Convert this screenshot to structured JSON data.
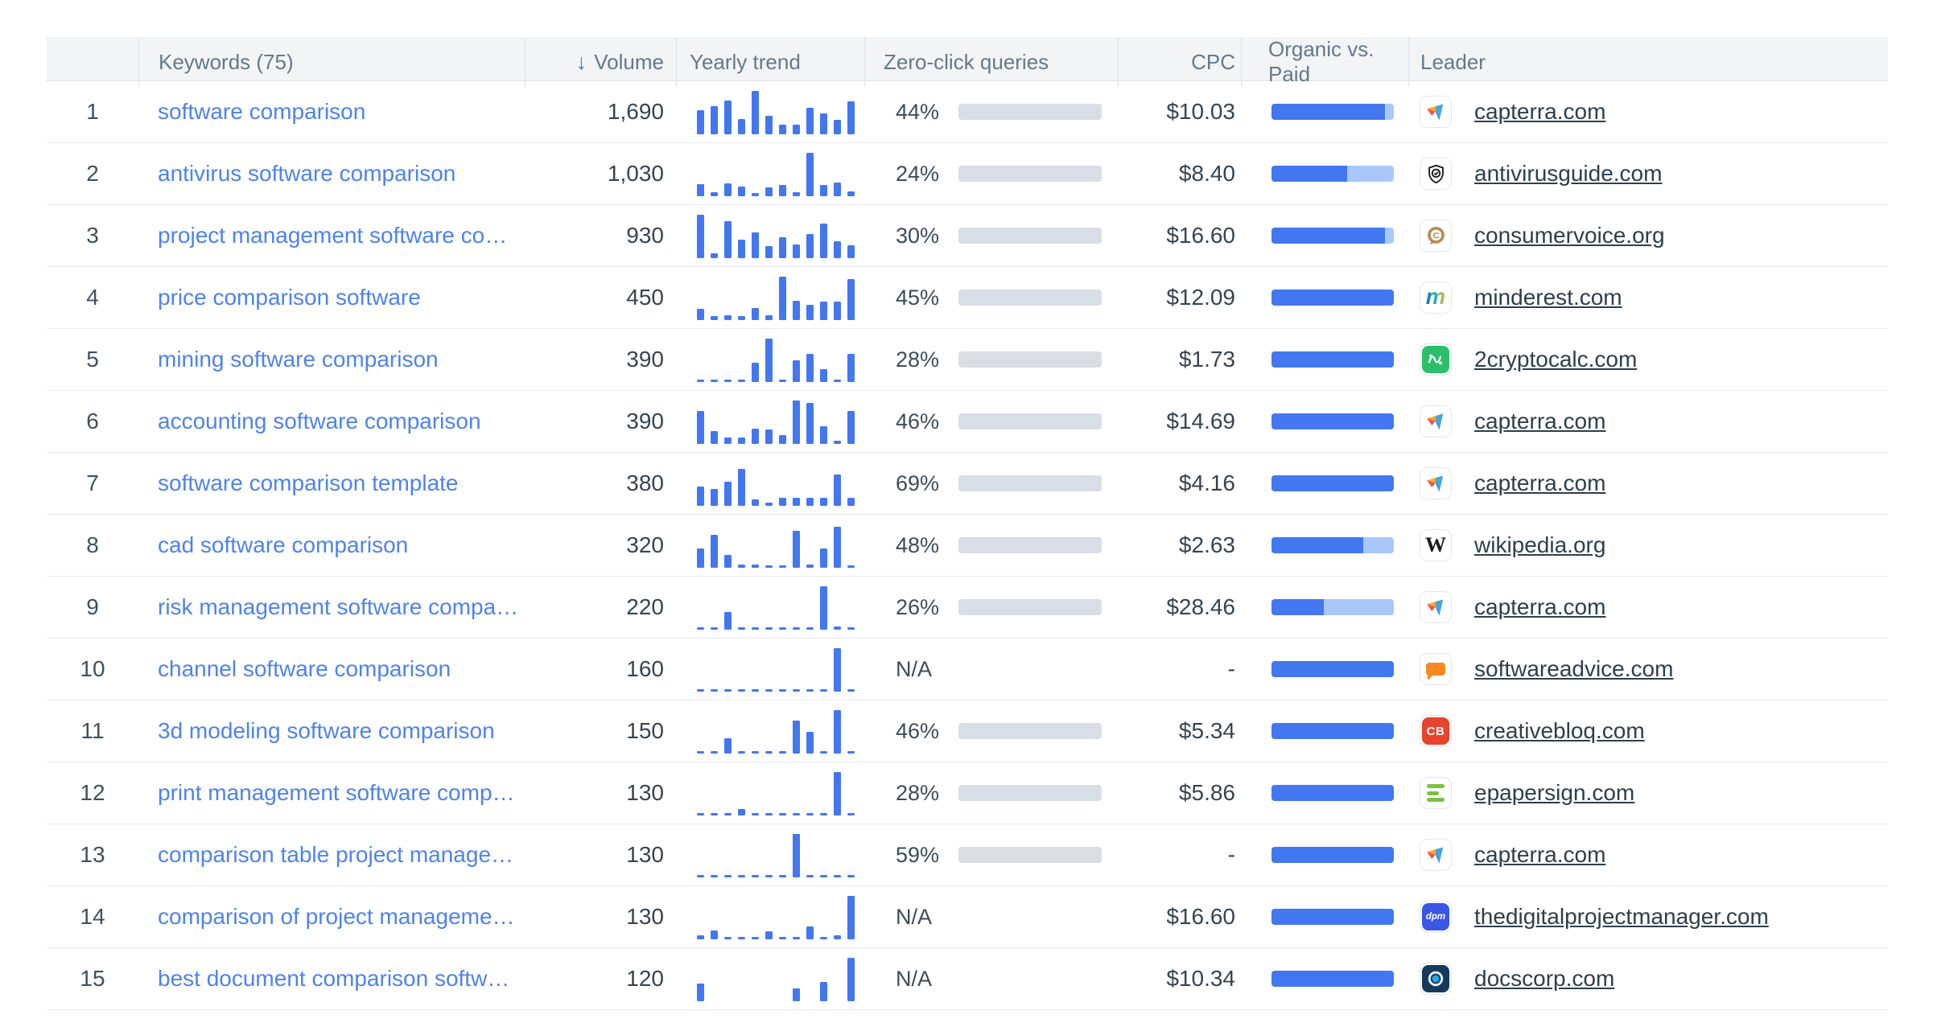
{
  "header": {
    "keywords_label": "Keywords (75)",
    "volume_label": "Volume",
    "sort_icon": "arrow-down",
    "yearly_trend_label": "Yearly trend",
    "zero_click_label": "Zero-click queries",
    "cpc_label": "CPC",
    "organic_paid_label": "Organic vs. Paid",
    "leader_label": "Leader"
  },
  "colors": {
    "accent_blue": "#4377f0",
    "link_blue": "#4d82f2",
    "bar_track": "#d9dde6",
    "paid_light_blue": "#a9c7fa",
    "header_bg": "#f3f4f6",
    "text_dark": "#37444f",
    "header_text": "#66788a"
  },
  "rows": [
    {
      "rank": "1",
      "keyword": "software comparison",
      "volume": "1,690",
      "trend": [
        0.55,
        0.65,
        0.78,
        0.35,
        1.0,
        0.42,
        0.22,
        0.22,
        0.62,
        0.48,
        0.33,
        0.75
      ],
      "zero_click": "44%",
      "zero_click_pct": 44,
      "cpc": "$10.03",
      "organic": 0.93,
      "paid": 0.07,
      "icon": "capterra",
      "leader": "capterra.com"
    },
    {
      "rank": "2",
      "keyword": "antivirus software comparison",
      "volume": "1,030",
      "trend": [
        0.28,
        0.1,
        0.3,
        0.22,
        0.08,
        0.2,
        0.25,
        0.1,
        1.0,
        0.25,
        0.32,
        0.12
      ],
      "zero_click": "24%",
      "zero_click_pct": 24,
      "cpc": "$8.40",
      "organic": 0.62,
      "paid": 0.38,
      "icon": "antivirusguide",
      "leader": "antivirusguide.com"
    },
    {
      "rank": "3",
      "keyword": "project management software co…",
      "volume": "930",
      "trend": [
        1.0,
        0.12,
        0.85,
        0.42,
        0.6,
        0.28,
        0.48,
        0.32,
        0.55,
        0.8,
        0.38,
        0.3
      ],
      "zero_click": "30%",
      "zero_click_pct": 30,
      "cpc": "$16.60",
      "organic": 0.93,
      "paid": 0.07,
      "icon": "consumervoice",
      "leader": "consumervoice.org"
    },
    {
      "rank": "4",
      "keyword": "price comparison software",
      "volume": "450",
      "trend": [
        0.25,
        0.1,
        0.12,
        0.1,
        0.28,
        0.12,
        1.0,
        0.45,
        0.35,
        0.42,
        0.42,
        0.95
      ],
      "zero_click": "45%",
      "zero_click_pct": 45,
      "cpc": "$12.09",
      "organic": 1,
      "paid": 0,
      "icon": "minderest",
      "leader": "minderest.com"
    },
    {
      "rank": "5",
      "keyword": "mining software comparison",
      "volume": "390",
      "trend": [
        0.03,
        0.03,
        0.03,
        0.03,
        0.45,
        1.0,
        0.06,
        0.5,
        0.65,
        0.3,
        0.03,
        0.65
      ],
      "zero_click": "28%",
      "zero_click_pct": 28,
      "cpc": "$1.73",
      "organic": 1,
      "paid": 0,
      "icon": "cryptocalc",
      "leader": "2cryptocalc.com"
    },
    {
      "rank": "6",
      "keyword": "accounting software comparison",
      "volume": "390",
      "trend": [
        0.75,
        0.3,
        0.15,
        0.15,
        0.35,
        0.33,
        0.2,
        1.0,
        0.95,
        0.4,
        0.08,
        0.75
      ],
      "zero_click": "46%",
      "zero_click_pct": 46,
      "cpc": "$14.69",
      "organic": 1,
      "paid": 0,
      "icon": "capterra",
      "leader": "capterra.com"
    },
    {
      "rank": "7",
      "keyword": "software comparison template",
      "volume": "380",
      "trend": [
        0.45,
        0.38,
        0.55,
        0.85,
        0.15,
        0.08,
        0.18,
        0.18,
        0.18,
        0.18,
        0.72,
        0.18
      ],
      "zero_click": "69%",
      "zero_click_pct": 69,
      "cpc": "$4.16",
      "organic": 1,
      "paid": 0,
      "icon": "capterra",
      "leader": "capterra.com"
    },
    {
      "rank": "8",
      "keyword": "cad software comparison",
      "volume": "320",
      "trend": [
        0.45,
        0.75,
        0.3,
        0.07,
        0.07,
        0.03,
        0.03,
        0.85,
        0.08,
        0.45,
        0.95,
        0.03
      ],
      "zero_click": "48%",
      "zero_click_pct": 48,
      "cpc": "$2.63",
      "organic": 0.75,
      "paid": 0.25,
      "icon": "wikipedia",
      "leader": "wikipedia.org"
    },
    {
      "rank": "9",
      "keyword": "risk management software compa…",
      "volume": "220",
      "trend": [
        0.03,
        0.03,
        0.4,
        0.03,
        0.03,
        0.03,
        0.03,
        0.03,
        0.03,
        1.0,
        0.08,
        0.03
      ],
      "zero_click": "26%",
      "zero_click_pct": 26,
      "cpc": "$28.46",
      "organic": 0.43,
      "paid": 0.57,
      "icon": "capterra",
      "leader": "capterra.com"
    },
    {
      "rank": "10",
      "keyword": "channel software comparison",
      "volume": "160",
      "trend": [
        0.03,
        0.03,
        0.03,
        0.03,
        0.03,
        0.03,
        0.03,
        0.03,
        0.03,
        0.03,
        1.0,
        0.03
      ],
      "zero_click": "N/A",
      "zero_click_pct": null,
      "cpc": "-",
      "organic": 1,
      "paid": 0,
      "icon": "softwareadvice",
      "leader": "softwareadvice.com"
    },
    {
      "rank": "11",
      "keyword": "3d modeling software comparison",
      "volume": "150",
      "trend": [
        0.03,
        0.03,
        0.35,
        0.03,
        0.03,
        0.03,
        0.03,
        0.75,
        0.5,
        0.03,
        1.0,
        0.03
      ],
      "zero_click": "46%",
      "zero_click_pct": 46,
      "cpc": "$5.34",
      "organic": 1,
      "paid": 0,
      "icon": "creativebloq",
      "leader": "creativebloq.com"
    },
    {
      "rank": "12",
      "keyword": "print management software comp…",
      "volume": "130",
      "trend": [
        0.03,
        0.03,
        0.03,
        0.15,
        0.03,
        0.03,
        0.03,
        0.03,
        0.03,
        0.03,
        1.0,
        0.03
      ],
      "zero_click": "28%",
      "zero_click_pct": 28,
      "cpc": "$5.86",
      "organic": 1,
      "paid": 0,
      "icon": "epapersign",
      "leader": "epapersign.com"
    },
    {
      "rank": "13",
      "keyword": "comparison table project manage…",
      "volume": "130",
      "trend": [
        0.03,
        0.03,
        0.03,
        0.03,
        0.03,
        0.03,
        0.03,
        1.0,
        0.03,
        0.03,
        0.03,
        0.03
      ],
      "zero_click": "59%",
      "zero_click_pct": 59,
      "cpc": "-",
      "organic": 1,
      "paid": 0,
      "icon": "capterra",
      "leader": "capterra.com"
    },
    {
      "rank": "14",
      "keyword": "comparison of project manageme…",
      "volume": "130",
      "trend": [
        0.1,
        0.2,
        0.04,
        0.04,
        0.04,
        0.18,
        0.04,
        0.04,
        0.3,
        0.04,
        0.1,
        1.0
      ],
      "zero_click": "N/A",
      "zero_click_pct": null,
      "cpc": "$16.60",
      "organic": 1,
      "paid": 0,
      "icon": "dpm",
      "leader": "thedigitalprojectmanager.com"
    },
    {
      "rank": "15",
      "keyword": "best document comparison softw…",
      "volume": "120",
      "trend": [
        0.4,
        0,
        0,
        0,
        0,
        0,
        0,
        0.3,
        0,
        0.45,
        0,
        1.0
      ],
      "zero_click": "N/A",
      "zero_click_pct": null,
      "cpc": "$10.34",
      "organic": 1,
      "paid": 0,
      "icon": "docscorp",
      "leader": "docscorp.com"
    }
  ]
}
